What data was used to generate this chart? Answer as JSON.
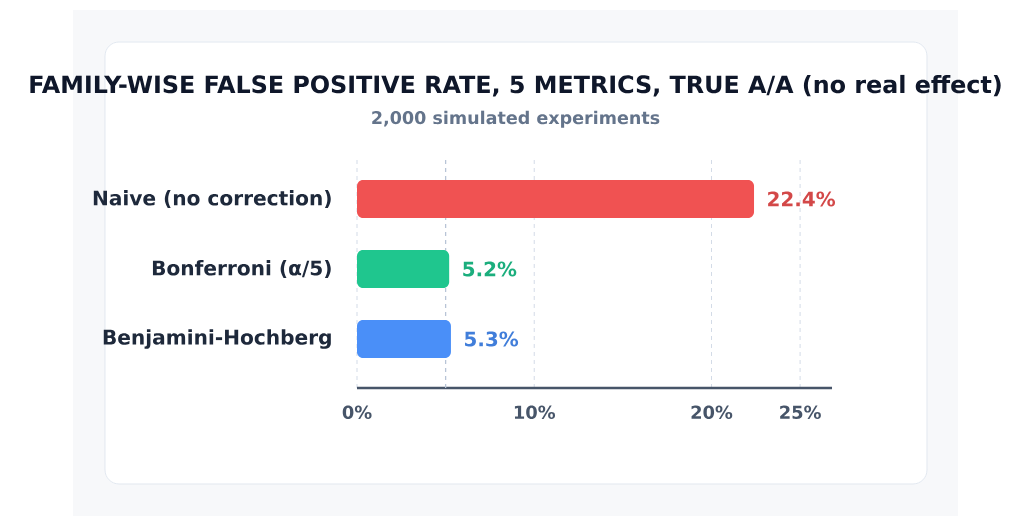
{
  "chart_data": {
    "type": "bar",
    "orientation": "horizontal",
    "title": "FAMILY-WISE FALSE POSITIVE RATE, 5 METRICS, TRUE A/A (no real effect)",
    "subtitle": "2,000 simulated experiments",
    "categories": [
      "Naive (no correction)",
      "Bonferroni (α/5)",
      "Benjamini-Hochberg"
    ],
    "values": [
      22.4,
      5.2,
      5.3
    ],
    "colors": [
      "#f05252",
      "#1fc68e",
      "#4a8ff8"
    ],
    "value_labels": [
      "22.4%",
      "5.2%",
      "5.3%"
    ],
    "xlim": [
      0,
      26.8
    ],
    "xticks": [
      {
        "value": 0,
        "label": "0%"
      },
      {
        "value": 10,
        "label": "10%"
      },
      {
        "value": 20,
        "label": "20%"
      },
      {
        "value": 25,
        "label": "25%"
      }
    ],
    "grid": "x",
    "ref_lines": [
      {
        "axis": "x",
        "value": 5,
        "color": "#b8c4d6",
        "line_style": "dashed"
      }
    ]
  }
}
